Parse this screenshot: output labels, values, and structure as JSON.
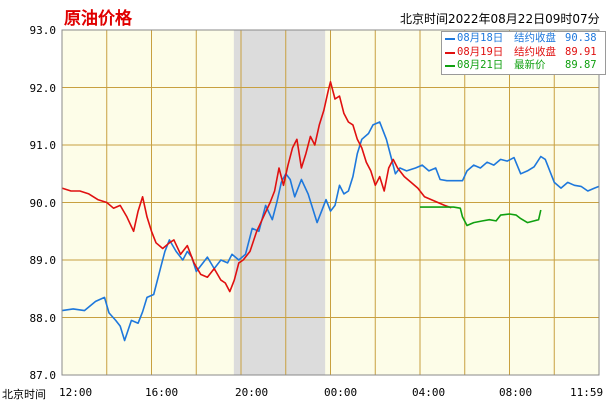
{
  "title": "原油价格",
  "timestamp": "北京时间2022年08月22日09时07分",
  "x_axis_prefix": "北京时间",
  "legend": [
    {
      "date": "08月18日",
      "label": "结约收盘",
      "value": "90.38",
      "color": "#1e78dc"
    },
    {
      "date": "08月19日",
      "label": "结约收盘",
      "value": "89.91",
      "color": "#e01010"
    },
    {
      "date": "08月21日",
      "label": "最新价",
      "value": "89.87",
      "color": "#10a010"
    }
  ],
  "chart_data": {
    "type": "line",
    "ylim": [
      87.0,
      93.0
    ],
    "y_ticks": [
      "93.0",
      "92.0",
      "91.0",
      "90.0",
      "89.0",
      "88.0",
      "87.0"
    ],
    "x_range_hours": [
      0,
      24
    ],
    "x_ticks": [
      {
        "label": "12:00",
        "h": 0
      },
      {
        "label": "16:00",
        "h": 4
      },
      {
        "label": "20:00",
        "h": 8
      },
      {
        "label": "00:00",
        "h": 12
      },
      {
        "label": "04:00",
        "h": 16
      },
      {
        "label": "08:00",
        "h": 20
      },
      {
        "label": "11:59",
        "h": 24
      }
    ],
    "shaded_range_hours": [
      7.68,
      11.76
    ],
    "series": [
      {
        "color": "#1e78dc",
        "points": [
          [
            0,
            88.12
          ],
          [
            0.5,
            88.15
          ],
          [
            1,
            88.12
          ],
          [
            1.5,
            88.28
          ],
          [
            1.9,
            88.35
          ],
          [
            2.1,
            88.08
          ],
          [
            2.4,
            87.95
          ],
          [
            2.6,
            87.85
          ],
          [
            2.8,
            87.6
          ],
          [
            3.1,
            87.95
          ],
          [
            3.4,
            87.9
          ],
          [
            3.6,
            88.1
          ],
          [
            3.8,
            88.35
          ],
          [
            4.1,
            88.4
          ],
          [
            4.4,
            88.85
          ],
          [
            4.6,
            89.15
          ],
          [
            4.8,
            89.35
          ],
          [
            5.1,
            89.15
          ],
          [
            5.4,
            89.0
          ],
          [
            5.6,
            89.15
          ],
          [
            5.8,
            89.05
          ],
          [
            6.0,
            88.8
          ],
          [
            6.3,
            88.95
          ],
          [
            6.5,
            89.05
          ],
          [
            6.8,
            88.85
          ],
          [
            7.1,
            89.0
          ],
          [
            7.4,
            88.95
          ],
          [
            7.6,
            89.1
          ],
          [
            7.9,
            89.0
          ],
          [
            8.2,
            89.1
          ],
          [
            8.5,
            89.55
          ],
          [
            8.8,
            89.5
          ],
          [
            9.1,
            89.95
          ],
          [
            9.4,
            89.7
          ],
          [
            9.6,
            90.0
          ],
          [
            9.8,
            90.35
          ],
          [
            10.0,
            90.5
          ],
          [
            10.2,
            90.4
          ],
          [
            10.4,
            90.1
          ],
          [
            10.7,
            90.4
          ],
          [
            11.0,
            90.15
          ],
          [
            11.2,
            89.9
          ],
          [
            11.4,
            89.65
          ],
          [
            11.6,
            89.85
          ],
          [
            11.8,
            90.05
          ],
          [
            12.0,
            89.85
          ],
          [
            12.2,
            89.95
          ],
          [
            12.4,
            90.3
          ],
          [
            12.6,
            90.15
          ],
          [
            12.8,
            90.2
          ],
          [
            13.0,
            90.45
          ],
          [
            13.2,
            90.85
          ],
          [
            13.4,
            91.1
          ],
          [
            13.7,
            91.2
          ],
          [
            13.9,
            91.35
          ],
          [
            14.2,
            91.4
          ],
          [
            14.5,
            91.1
          ],
          [
            14.7,
            90.8
          ],
          [
            14.9,
            90.5
          ],
          [
            15.1,
            90.6
          ],
          [
            15.4,
            90.55
          ],
          [
            15.8,
            90.6
          ],
          [
            16.1,
            90.65
          ],
          [
            16.4,
            90.55
          ],
          [
            16.7,
            90.6
          ],
          [
            16.9,
            90.4
          ],
          [
            17.2,
            90.38
          ],
          [
            17.6,
            90.38
          ],
          [
            17.9,
            90.38
          ],
          [
            18.1,
            90.55
          ],
          [
            18.4,
            90.65
          ],
          [
            18.7,
            90.6
          ],
          [
            19.0,
            90.7
          ],
          [
            19.3,
            90.65
          ],
          [
            19.6,
            90.75
          ],
          [
            19.9,
            90.72
          ],
          [
            20.2,
            90.78
          ],
          [
            20.5,
            90.5
          ],
          [
            20.8,
            90.55
          ],
          [
            21.1,
            90.62
          ],
          [
            21.4,
            90.8
          ],
          [
            21.6,
            90.75
          ],
          [
            21.8,
            90.55
          ],
          [
            22.0,
            90.35
          ],
          [
            22.3,
            90.25
          ],
          [
            22.6,
            90.35
          ],
          [
            22.9,
            90.3
          ],
          [
            23.2,
            90.28
          ],
          [
            23.5,
            90.2
          ],
          [
            23.8,
            90.25
          ],
          [
            24.0,
            90.28
          ]
        ]
      },
      {
        "color": "#e01010",
        "points": [
          [
            0,
            90.25
          ],
          [
            0.4,
            90.2
          ],
          [
            0.8,
            90.2
          ],
          [
            1.2,
            90.15
          ],
          [
            1.6,
            90.05
          ],
          [
            2.0,
            90.0
          ],
          [
            2.3,
            89.9
          ],
          [
            2.6,
            89.95
          ],
          [
            2.9,
            89.75
          ],
          [
            3.2,
            89.5
          ],
          [
            3.4,
            89.85
          ],
          [
            3.6,
            90.1
          ],
          [
            3.8,
            89.75
          ],
          [
            4.0,
            89.5
          ],
          [
            4.2,
            89.3
          ],
          [
            4.5,
            89.2
          ],
          [
            4.8,
            89.3
          ],
          [
            5.0,
            89.35
          ],
          [
            5.3,
            89.1
          ],
          [
            5.6,
            89.25
          ],
          [
            5.9,
            88.95
          ],
          [
            6.2,
            88.75
          ],
          [
            6.5,
            88.7
          ],
          [
            6.8,
            88.85
          ],
          [
            7.1,
            88.65
          ],
          [
            7.3,
            88.6
          ],
          [
            7.5,
            88.45
          ],
          [
            7.7,
            88.65
          ],
          [
            7.9,
            88.95
          ],
          [
            8.1,
            89.0
          ],
          [
            8.4,
            89.15
          ],
          [
            8.7,
            89.5
          ],
          [
            9.0,
            89.75
          ],
          [
            9.3,
            90.0
          ],
          [
            9.5,
            90.2
          ],
          [
            9.7,
            90.6
          ],
          [
            9.9,
            90.3
          ],
          [
            10.1,
            90.65
          ],
          [
            10.3,
            90.95
          ],
          [
            10.5,
            91.1
          ],
          [
            10.7,
            90.6
          ],
          [
            10.9,
            90.85
          ],
          [
            11.1,
            91.15
          ],
          [
            11.3,
            91.0
          ],
          [
            11.5,
            91.35
          ],
          [
            11.7,
            91.6
          ],
          [
            11.9,
            91.95
          ],
          [
            12.0,
            92.1
          ],
          [
            12.2,
            91.8
          ],
          [
            12.4,
            91.85
          ],
          [
            12.6,
            91.55
          ],
          [
            12.8,
            91.4
          ],
          [
            13.0,
            91.35
          ],
          [
            13.2,
            91.1
          ],
          [
            13.4,
            90.95
          ],
          [
            13.6,
            90.7
          ],
          [
            13.8,
            90.55
          ],
          [
            14.0,
            90.3
          ],
          [
            14.2,
            90.45
          ],
          [
            14.4,
            90.2
          ],
          [
            14.6,
            90.6
          ],
          [
            14.8,
            90.75
          ],
          [
            15.0,
            90.6
          ],
          [
            15.3,
            90.45
          ],
          [
            15.6,
            90.35
          ],
          [
            15.9,
            90.25
          ],
          [
            16.2,
            90.1
          ],
          [
            16.5,
            90.05
          ],
          [
            16.8,
            90.0
          ],
          [
            17.1,
            89.95
          ],
          [
            17.4,
            89.91
          ]
        ]
      },
      {
        "color": "#10a010",
        "points": [
          [
            16.0,
            89.92
          ],
          [
            16.5,
            89.92
          ],
          [
            17.0,
            89.92
          ],
          [
            17.5,
            89.92
          ],
          [
            17.8,
            89.9
          ],
          [
            17.9,
            89.75
          ],
          [
            18.1,
            89.6
          ],
          [
            18.4,
            89.65
          ],
          [
            18.8,
            89.68
          ],
          [
            19.1,
            89.7
          ],
          [
            19.4,
            89.68
          ],
          [
            19.6,
            89.78
          ],
          [
            20.0,
            89.8
          ],
          [
            20.3,
            89.78
          ],
          [
            20.5,
            89.72
          ],
          [
            20.8,
            89.65
          ],
          [
            21.1,
            89.68
          ],
          [
            21.3,
            89.7
          ],
          [
            21.4,
            89.87
          ]
        ]
      }
    ]
  }
}
